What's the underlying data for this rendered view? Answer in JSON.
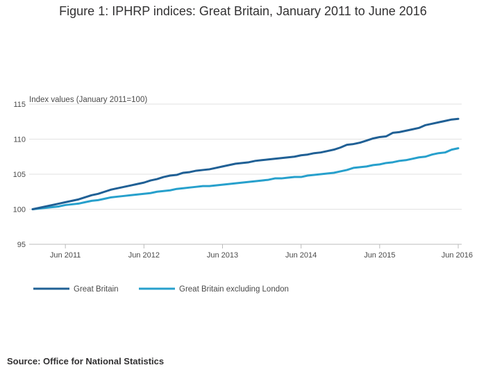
{
  "title": "Figure 1: IPHRP indices: Great Britain, January 2011 to June 2016",
  "source": "Source: Office for National Statistics",
  "chart_data": {
    "type": "line",
    "title": "Figure 1: IPHRP indices: Great Britain, January 2011 to June 2016",
    "ylabel": "Index values (January 2011=100)",
    "xlabel": "",
    "ylim": [
      95,
      115
    ],
    "yticks": [
      95,
      100,
      105,
      110,
      115
    ],
    "xtick_labels": [
      "Jun 2011",
      "Jun 2012",
      "Jun 2013",
      "Jun 2014",
      "Jun 2015",
      "Jun 2016"
    ],
    "grid": "horizontal",
    "legend_placement": "bottom-left",
    "x": [
      "Jan 2011",
      "Feb 2011",
      "Mar 2011",
      "Apr 2011",
      "May 2011",
      "Jun 2011",
      "Jul 2011",
      "Aug 2011",
      "Sep 2011",
      "Oct 2011",
      "Nov 2011",
      "Dec 2011",
      "Jan 2012",
      "Feb 2012",
      "Mar 2012",
      "Apr 2012",
      "May 2012",
      "Jun 2012",
      "Jul 2012",
      "Aug 2012",
      "Sep 2012",
      "Oct 2012",
      "Nov 2012",
      "Dec 2012",
      "Jan 2013",
      "Feb 2013",
      "Mar 2013",
      "Apr 2013",
      "May 2013",
      "Jun 2013",
      "Jul 2013",
      "Aug 2013",
      "Sep 2013",
      "Oct 2013",
      "Nov 2013",
      "Dec 2013",
      "Jan 2014",
      "Feb 2014",
      "Mar 2014",
      "Apr 2014",
      "May 2014",
      "Jun 2014",
      "Jul 2014",
      "Aug 2014",
      "Sep 2014",
      "Oct 2014",
      "Nov 2014",
      "Dec 2014",
      "Jan 2015",
      "Feb 2015",
      "Mar 2015",
      "Apr 2015",
      "May 2015",
      "Jun 2015",
      "Jul 2015",
      "Aug 2015",
      "Sep 2015",
      "Oct 2015",
      "Nov 2015",
      "Dec 2015",
      "Jan 2016",
      "Feb 2016",
      "Mar 2016",
      "Apr 2016",
      "May 2016",
      "Jun 2016"
    ],
    "series": [
      {
        "name": "Great Britain",
        "color": "#206095",
        "values": [
          100.0,
          100.2,
          100.4,
          100.6,
          100.8,
          101.0,
          101.2,
          101.4,
          101.7,
          102.0,
          102.2,
          102.5,
          102.8,
          103.0,
          103.2,
          103.4,
          103.6,
          103.8,
          104.1,
          104.3,
          104.6,
          104.8,
          104.9,
          105.2,
          105.3,
          105.5,
          105.6,
          105.7,
          105.9,
          106.1,
          106.3,
          106.5,
          106.6,
          106.7,
          106.9,
          107.0,
          107.1,
          107.2,
          107.3,
          107.4,
          107.5,
          107.7,
          107.8,
          108.0,
          108.1,
          108.3,
          108.5,
          108.8,
          109.2,
          109.3,
          109.5,
          109.8,
          110.1,
          110.3,
          110.4,
          110.9,
          111.0,
          111.2,
          111.4,
          111.6,
          112.0,
          112.2,
          112.4,
          112.6,
          112.8,
          112.9
        ]
      },
      {
        "name": "Great Britain excluding London",
        "color": "#27a0cc",
        "values": [
          100.0,
          100.1,
          100.2,
          100.3,
          100.4,
          100.6,
          100.7,
          100.8,
          101.0,
          101.2,
          101.3,
          101.5,
          101.7,
          101.8,
          101.9,
          102.0,
          102.1,
          102.2,
          102.3,
          102.5,
          102.6,
          102.7,
          102.9,
          103.0,
          103.1,
          103.2,
          103.3,
          103.3,
          103.4,
          103.5,
          103.6,
          103.7,
          103.8,
          103.9,
          104.0,
          104.1,
          104.2,
          104.4,
          104.4,
          104.5,
          104.6,
          104.6,
          104.8,
          104.9,
          105.0,
          105.1,
          105.2,
          105.4,
          105.6,
          105.9,
          106.0,
          106.1,
          106.3,
          106.4,
          106.6,
          106.7,
          106.9,
          107.0,
          107.2,
          107.4,
          107.5,
          107.8,
          108.0,
          108.1,
          108.5,
          108.7
        ]
      }
    ]
  }
}
